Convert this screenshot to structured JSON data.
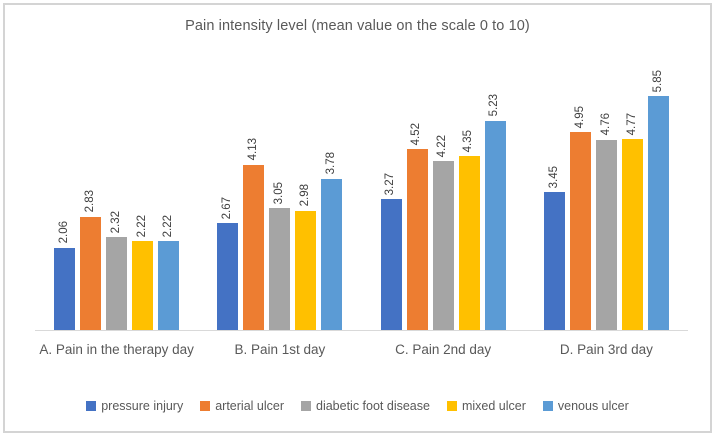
{
  "chart_data": {
    "type": "bar",
    "title": "Pain intensity level (mean value on the scale 0 to 10)",
    "categories": [
      "A. Pain in the therapy day",
      "B. Pain 1st day",
      "C. Pain 2nd day",
      "D. Pain 3rd day"
    ],
    "series": [
      {
        "name": "pressure injury",
        "color": "#4472C4",
        "values": [
          2.06,
          2.67,
          3.27,
          3.45
        ]
      },
      {
        "name": "arterial ulcer",
        "color": "#ED7D31",
        "values": [
          2.83,
          4.13,
          4.52,
          4.95
        ]
      },
      {
        "name": "diabetic foot disease",
        "color": "#A5A5A5",
        "values": [
          2.32,
          3.05,
          4.22,
          4.76
        ]
      },
      {
        "name": "mixed ulcer",
        "color": "#FFC000",
        "values": [
          2.22,
          2.98,
          4.35,
          4.77
        ]
      },
      {
        "name": "venous ulcer",
        "color": "#5B9BD5",
        "values": [
          2.22,
          3.78,
          5.23,
          5.85
        ]
      }
    ],
    "ylim": [
      0,
      6
    ],
    "grid": false,
    "legend_position": "bottom",
    "data_labels": "rotated-vertical",
    "axis_line_color": "#D9D9D9",
    "value_decimals": 2
  }
}
